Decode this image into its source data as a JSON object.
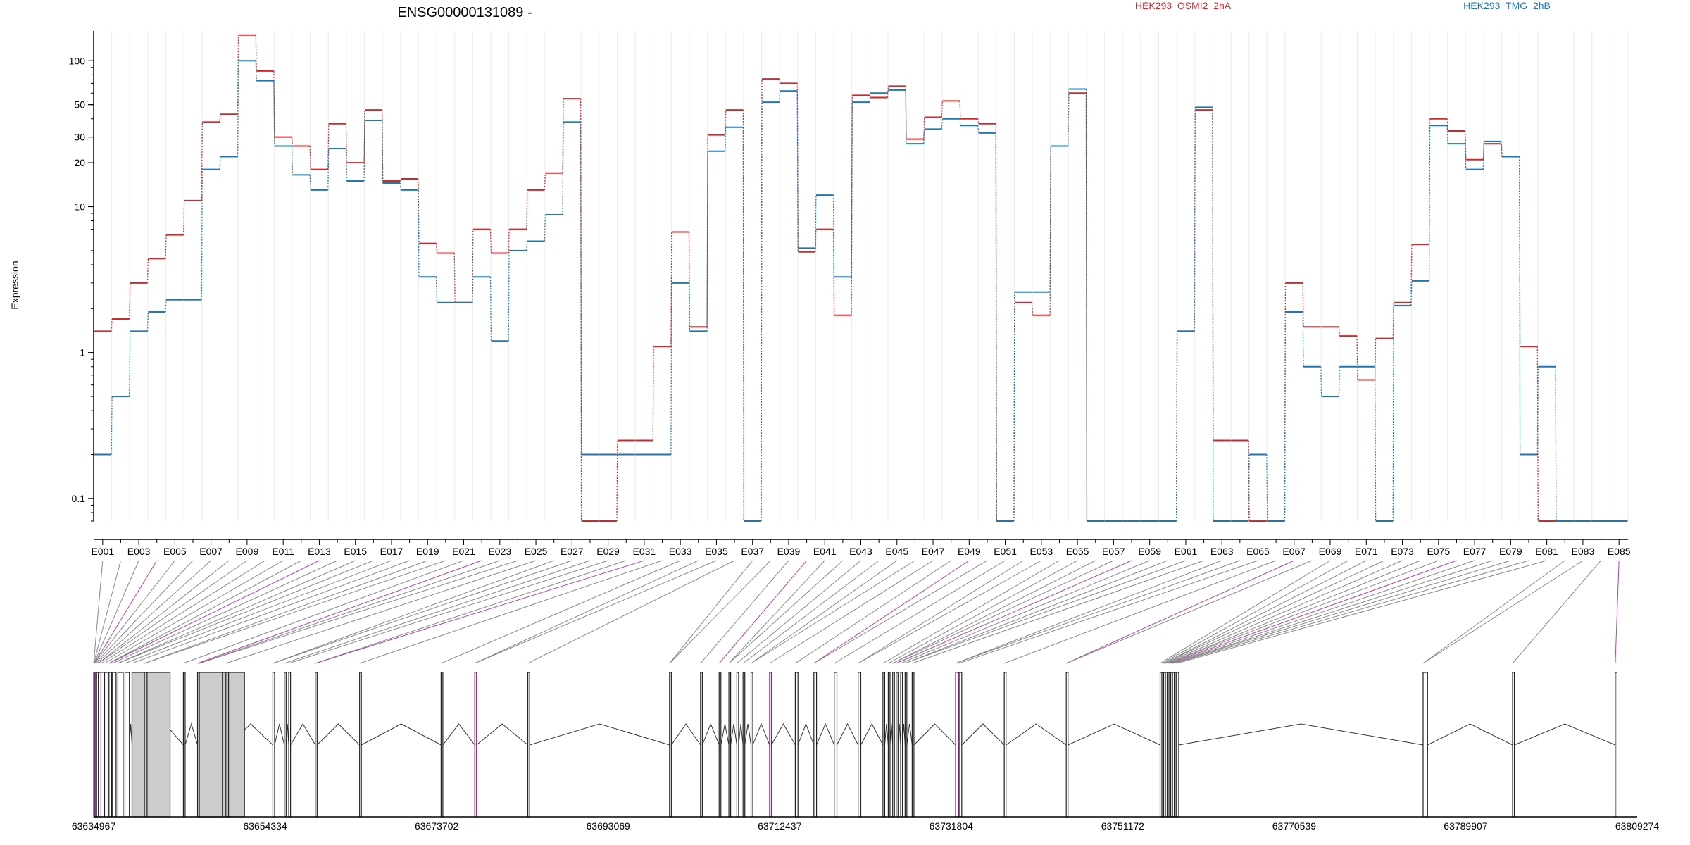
{
  "chart_data": {
    "type": "line",
    "title": "ENSG00000131089 -",
    "ylabel": "Expression",
    "yscale": "log",
    "yticks": [
      0.1,
      1,
      10,
      20,
      30,
      50,
      100
    ],
    "ytick_labels": [
      "0.1",
      "1",
      "10",
      "20",
      "30",
      "50",
      "100"
    ],
    "ylim": [
      0.07,
      160
    ],
    "legend_placement": "top",
    "grid_x": true,
    "categories": [
      "E001",
      "E002",
      "E003",
      "E004",
      "E005",
      "E006",
      "E007",
      "E008",
      "E009",
      "E010",
      "E011",
      "E012",
      "E013",
      "E014",
      "E015",
      "E016",
      "E017",
      "E018",
      "E019",
      "E020",
      "E021",
      "E022",
      "E023",
      "E024",
      "E025",
      "E026",
      "E027",
      "E028",
      "E029",
      "E030",
      "E031",
      "E032",
      "E033",
      "E034",
      "E035",
      "E036",
      "E037",
      "E038",
      "E039",
      "E040",
      "E041",
      "E042",
      "E043",
      "E044",
      "E045",
      "E046",
      "E047",
      "E048",
      "E049",
      "E050",
      "E051",
      "E052",
      "E053",
      "E054",
      "E055",
      "E056",
      "E057",
      "E058",
      "E059",
      "E060",
      "E061",
      "E062",
      "E063",
      "E064",
      "E065",
      "E066",
      "E067",
      "E068",
      "E069",
      "E070",
      "E071",
      "E072",
      "E073",
      "E074",
      "E075",
      "E076",
      "E077",
      "E078",
      "E079",
      "E080",
      "E081",
      "E082",
      "E083",
      "E084",
      "E085"
    ],
    "xtick_labels": [
      "E001",
      "E003",
      "E005",
      "E007",
      "E009",
      "E011",
      "E013",
      "E015",
      "E017",
      "E019",
      "E021",
      "E023",
      "E025",
      "E027",
      "E029",
      "E031",
      "E033",
      "E035",
      "E037",
      "E039",
      "E041",
      "E043",
      "E045",
      "E047",
      "E049",
      "E051",
      "E053",
      "E055",
      "E057",
      "E059",
      "E061",
      "E063",
      "E065",
      "E067",
      "E069",
      "E071",
      "E073",
      "E075",
      "E077",
      "E079",
      "E081",
      "E083",
      "E085"
    ],
    "series": [
      {
        "name": "HEK293_OSMI2_2hA",
        "color": "#d62728",
        "values": [
          1.4,
          1.7,
          3.0,
          4.4,
          6.4,
          11,
          38,
          43,
          150,
          85,
          30,
          26,
          18,
          37,
          20,
          46,
          15,
          15.5,
          5.6,
          4.8,
          2.2,
          7.0,
          4.8,
          7.0,
          13,
          17,
          55,
          0.07,
          0.07,
          0.25,
          0.25,
          1.1,
          6.7,
          1.5,
          31,
          46,
          0.07,
          75,
          70,
          4.9,
          7.0,
          1.8,
          58,
          56,
          67,
          29,
          41,
          53,
          40,
          37,
          0.07,
          2.2,
          1.8,
          26,
          60,
          0.07,
          0.07,
          0.07,
          0.07,
          0.07,
          1.4,
          46,
          0.25,
          0.25,
          0.07,
          0.07,
          3.0,
          1.5,
          1.5,
          1.3,
          0.65,
          1.25,
          2.2,
          5.5,
          40,
          33,
          21,
          27,
          22,
          1.1,
          0.07,
          0.07,
          0.07,
          0.07,
          0.07
        ]
      },
      {
        "name": "HEK293_TMG_2hB",
        "color": "#1f77b4",
        "values": [
          0.2,
          0.5,
          1.4,
          1.9,
          2.3,
          2.3,
          18,
          22,
          100,
          73,
          26,
          16.5,
          13,
          25,
          15,
          39,
          14.5,
          13,
          3.3,
          2.2,
          2.2,
          3.3,
          1.2,
          5.0,
          5.8,
          8.8,
          38,
          0.2,
          0.2,
          0.2,
          0.2,
          0.2,
          3.0,
          1.4,
          24,
          35,
          0.07,
          52,
          62,
          5.2,
          12,
          3.3,
          52,
          60,
          63,
          27,
          34,
          40,
          36,
          32,
          0.07,
          2.6,
          2.6,
          26,
          64,
          0.07,
          0.07,
          0.07,
          0.07,
          0.07,
          1.4,
          48,
          0.07,
          0.07,
          0.2,
          0.07,
          1.9,
          0.8,
          0.5,
          0.8,
          0.8,
          0.07,
          2.1,
          3.1,
          36,
          27,
          18,
          28,
          22,
          0.2,
          0.8,
          0.07,
          0.07,
          0.07,
          0.07
        ]
      }
    ],
    "genome_axis": {
      "start": 63634967,
      "end": 63809274,
      "tick_labels": [
        "63634967",
        "63654334",
        "63673702",
        "63693069",
        "63712437",
        "63731804",
        "63751172",
        "63770539",
        "63789907",
        "63809274"
      ]
    },
    "gene_model": {
      "exon_starts": [
        63634967,
        63635000,
        63635050,
        63635150,
        63635300,
        63635500,
        63635800,
        63636200,
        63636700,
        63637100,
        63637700,
        63638500,
        63639300,
        63640700,
        63645100,
        63646700,
        63646900,
        63649900,
        63655200,
        63656500,
        63657000,
        63660000,
        63665000,
        63674200,
        63678000,
        63684000,
        63700000,
        63703500,
        63705600,
        63706700,
        63707600,
        63708300,
        63709200,
        63711300,
        63714200,
        63716300,
        63718600,
        63721300,
        63724100,
        63724700,
        63725200,
        63725600,
        63726100,
        63726600,
        63727400,
        63732300,
        63732700,
        63737800,
        63744800,
        63755400,
        63755600,
        63755800,
        63756000,
        63756200,
        63756400,
        63756600,
        63756800,
        63757000,
        63757300,
        63785100,
        63795200,
        63806800
      ],
      "exon_ends": [
        63635000,
        63635050,
        63635150,
        63635300,
        63635500,
        63635800,
        63636200,
        63636600,
        63637000,
        63637500,
        63638300,
        63639000,
        63643600,
        63641000,
        63645300,
        63652000,
        63649500,
        63650200,
        63655400,
        63656700,
        63657200,
        63660200,
        63665200,
        63674400,
        63678200,
        63684200,
        63700200,
        63703700,
        63705800,
        63706900,
        63707800,
        63708500,
        63709400,
        63711500,
        63714500,
        63716600,
        63718900,
        63721600,
        63724300,
        63724900,
        63725400,
        63725800,
        63726300,
        63726800,
        63727600,
        63732600,
        63733000,
        63738000,
        63745000,
        63755600,
        63755800,
        63756000,
        63756200,
        63756400,
        63756600,
        63756800,
        63757000,
        63757200,
        63757500,
        63785600,
        63795400,
        63807000
      ],
      "exon_fill_shaded": [
        63640700,
        63649900
      ]
    }
  }
}
